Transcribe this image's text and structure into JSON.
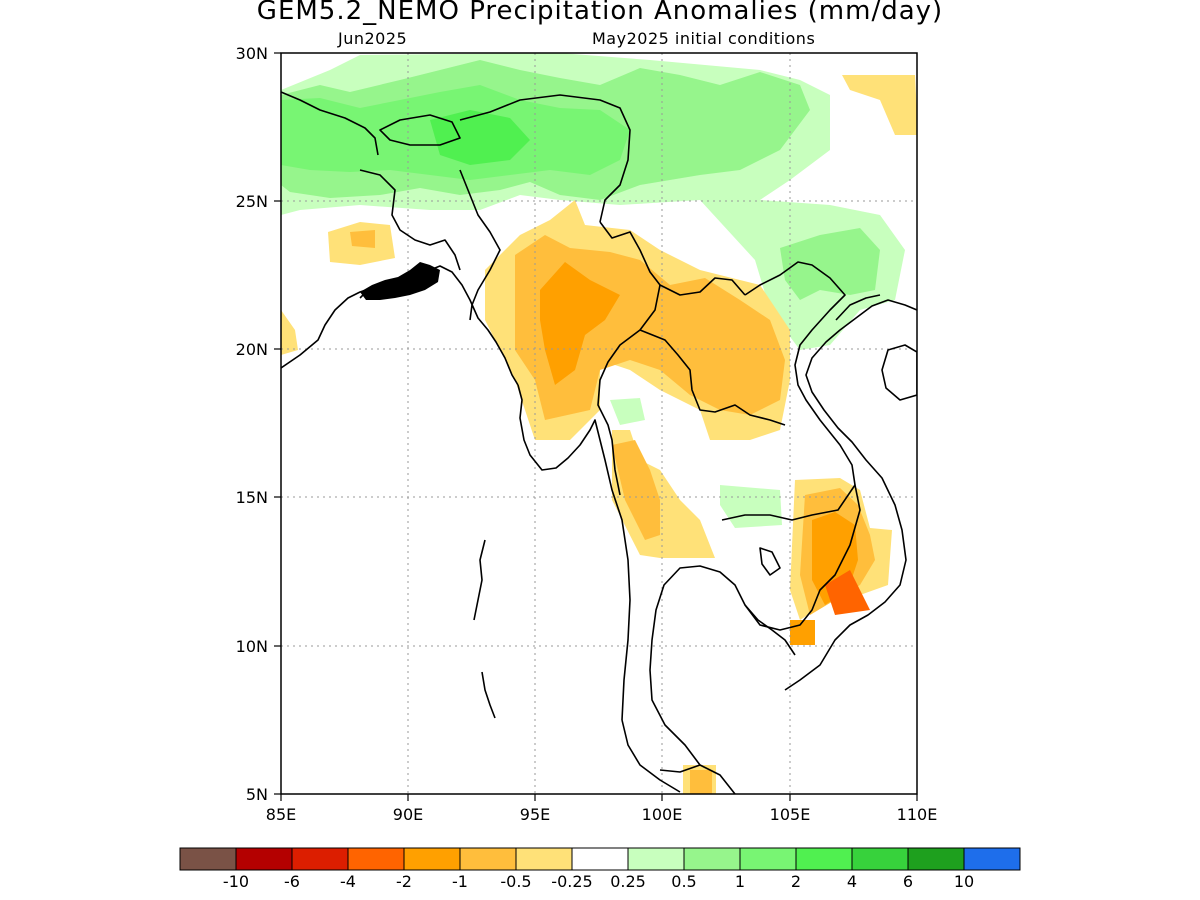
{
  "title": "GEM5.2_NEMO Precipitation Anomalies (mm/day)",
  "subtitle_left": "Jun2025",
  "subtitle_right": "May2025 initial conditions",
  "lat_ticks": [
    "5N",
    "10N",
    "15N",
    "20N",
    "25N",
    "30N"
  ],
  "lon_ticks": [
    "85E",
    "90E",
    "95E",
    "100E",
    "105E",
    "110E"
  ],
  "colorbar": {
    "colors": [
      "#7a5246",
      "#b40000",
      "#dc1e00",
      "#ff6400",
      "#ffa000",
      "#ffbe3c",
      "#ffe178",
      "#ffffff",
      "#c8ffbe",
      "#96f58c",
      "#78f573",
      "#50f050",
      "#37d23c",
      "#1ea01e",
      "#1e6eeb"
    ],
    "labels": [
      "-10",
      "-6",
      "-4",
      "-2",
      "-1",
      "-0.5",
      "-0.25",
      "0.25",
      "0.5",
      "1",
      "2",
      "4",
      "6",
      "10"
    ]
  }
}
